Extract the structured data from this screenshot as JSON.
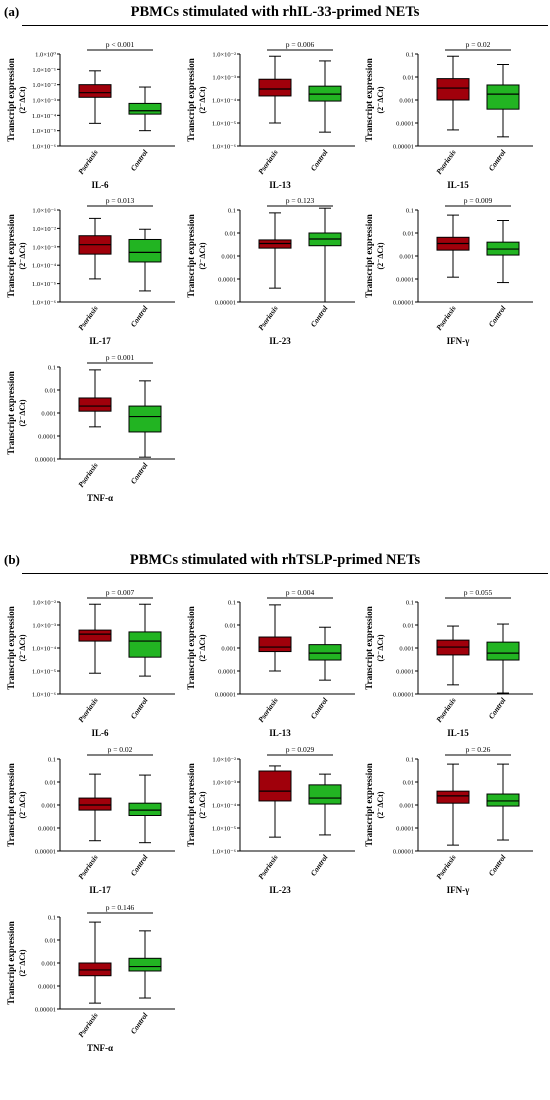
{
  "figure": {
    "panel_a": {
      "label": "(a)",
      "title": "PBMCs  stimulated with rhIL-33-primed NETs"
    },
    "panel_b": {
      "label": "(b)",
      "title": "PBMCs  stimulated with rhTSLP-primed NETs"
    },
    "ylabel_main": "Transcript expression",
    "ylabel_unit": "(2⁻ΔCt)",
    "colors": {
      "psoriasis": "#a0000b",
      "control": "#22b422"
    }
  },
  "chart_data": [
    {
      "type": "box",
      "title": "IL-6",
      "panel": "a",
      "pvalue": "p < 0.001",
      "scale": "log",
      "ylim_exp": [
        -6,
        0
      ],
      "tick_labels": [
        "1.0×10⁻⁶",
        "1.0×10⁻⁵",
        "1.0×10⁻⁴",
        "1.0×10⁻³",
        "1.0×10⁻²",
        "1.0×10⁻¹",
        "1.0×10⁰"
      ],
      "categories": [
        "Psoriasis",
        "Control"
      ],
      "series": [
        {
          "name": "Psoriasis",
          "min": 3e-05,
          "q1": 0.0015,
          "median": 0.003,
          "q3": 0.01,
          "max": 0.08
        },
        {
          "name": "Control",
          "min": 1e-05,
          "q1": 0.00012,
          "median": 0.0002,
          "q3": 0.0006,
          "max": 0.007
        }
      ]
    },
    {
      "type": "box",
      "title": "IL-13",
      "panel": "a",
      "pvalue": "p = 0.006",
      "scale": "log",
      "ylim_exp": [
        -6,
        -2
      ],
      "tick_labels": [
        "1.0×10⁻⁶",
        "1.0×10⁻⁵",
        "1.0×10⁻⁴",
        "1.0×10⁻³",
        "1.0×10⁻²"
      ],
      "categories": [
        "Psoriasis",
        "Control"
      ],
      "series": [
        {
          "name": "Psoriasis",
          "min": 1e-05,
          "q1": 0.00015,
          "median": 0.0003,
          "q3": 0.0008,
          "max": 0.008
        },
        {
          "name": "Control",
          "min": 4e-06,
          "q1": 9e-05,
          "median": 0.00018,
          "q3": 0.0004,
          "max": 0.005
        }
      ]
    },
    {
      "type": "box",
      "title": "IL-15",
      "panel": "a",
      "pvalue": "p = 0.02",
      "scale": "log",
      "ylim_exp": [
        -5,
        -1
      ],
      "tick_labels": [
        "0.00001",
        "0.0001",
        "0.001",
        "0.01",
        "0.1"
      ],
      "categories": [
        "Psoriasis",
        "Control"
      ],
      "series": [
        {
          "name": "Psoriasis",
          "min": 5e-05,
          "q1": 0.001,
          "median": 0.0033,
          "q3": 0.0085,
          "max": 0.08
        },
        {
          "name": "Control",
          "min": 2.5e-05,
          "q1": 0.0004,
          "median": 0.0018,
          "q3": 0.0045,
          "max": 0.035
        }
      ]
    },
    {
      "type": "box",
      "title": "IL-17",
      "panel": "a",
      "pvalue": "p = 0.013",
      "scale": "log",
      "ylim_exp": [
        -6,
        -1
      ],
      "tick_labels": [
        "1.0×10⁻⁶",
        "1.0×10⁻⁵",
        "1.0×10⁻⁴",
        "1.0×10⁻³",
        "1.0×10⁻²",
        "1.0×10⁻¹"
      ],
      "categories": [
        "Psoriasis",
        "Control"
      ],
      "series": [
        {
          "name": "Psoriasis",
          "min": 1.8e-05,
          "q1": 0.0004,
          "median": 0.0013,
          "q3": 0.004,
          "max": 0.035
        },
        {
          "name": "Control",
          "min": 4e-06,
          "q1": 0.00015,
          "median": 0.0005,
          "q3": 0.0025,
          "max": 0.009
        }
      ]
    },
    {
      "type": "box",
      "title": "IL-23",
      "panel": "a",
      "pvalue": "p = 0.123",
      "scale": "log",
      "ylim_exp": [
        -5,
        -1
      ],
      "tick_labels": [
        "0.00001",
        "0.0001",
        "0.001",
        "0.01",
        "0.1"
      ],
      "categories": [
        "Psoriasis",
        "Control"
      ],
      "series": [
        {
          "name": "Psoriasis",
          "min": 4e-05,
          "q1": 0.0022,
          "median": 0.0035,
          "q3": 0.005,
          "max": 0.075
        },
        {
          "name": "Control",
          "min": 1e-05,
          "q1": 0.0028,
          "median": 0.0055,
          "q3": 0.01,
          "max": 0.12
        }
      ]
    },
    {
      "type": "box",
      "title": "IFN-γ",
      "panel": "a",
      "pvalue": "p = 0.009",
      "scale": "log",
      "ylim_exp": [
        -5,
        -1
      ],
      "tick_labels": [
        "0.00001",
        "0.0001",
        "0.001",
        "0.01",
        "0.1"
      ],
      "categories": [
        "Psoriasis",
        "Control"
      ],
      "series": [
        {
          "name": "Psoriasis",
          "min": 0.00012,
          "q1": 0.0018,
          "median": 0.0035,
          "q3": 0.0065,
          "max": 0.06
        },
        {
          "name": "Control",
          "min": 7e-05,
          "q1": 0.0011,
          "median": 0.002,
          "q3": 0.004,
          "max": 0.035
        }
      ]
    },
    {
      "type": "box",
      "title": "TNF-α",
      "panel": "a",
      "pvalue": "p = 0.001",
      "scale": "log",
      "ylim_exp": [
        -5,
        -1
      ],
      "tick_labels": [
        "0.00001",
        "0.0001",
        "0.001",
        "0.01",
        "0.1"
      ],
      "categories": [
        "Psoriasis",
        "Control"
      ],
      "series": [
        {
          "name": "Psoriasis",
          "min": 0.00025,
          "q1": 0.0012,
          "median": 0.002,
          "q3": 0.0045,
          "max": 0.075
        },
        {
          "name": "Control",
          "min": 1.2e-05,
          "q1": 0.00015,
          "median": 0.0007,
          "q3": 0.002,
          "max": 0.025
        }
      ]
    },
    {
      "type": "box",
      "title": "IL-6",
      "panel": "b",
      "pvalue": "p = 0.007",
      "scale": "log",
      "ylim_exp": [
        -6,
        -2
      ],
      "tick_labels": [
        "1.0×10⁻⁶",
        "1.0×10⁻⁵",
        "1.0×10⁻⁴",
        "1.0×10⁻³",
        "1.0×10⁻²"
      ],
      "categories": [
        "Psoriasis",
        "Control"
      ],
      "series": [
        {
          "name": "Psoriasis",
          "min": 8e-06,
          "q1": 0.0002,
          "median": 0.0004,
          "q3": 0.0006,
          "max": 0.008
        },
        {
          "name": "Control",
          "min": 6e-06,
          "q1": 4e-05,
          "median": 0.0002,
          "q3": 0.0005,
          "max": 0.008
        }
      ]
    },
    {
      "type": "box",
      "title": "IL-13",
      "panel": "b",
      "pvalue": "p = 0.004",
      "scale": "log",
      "ylim_exp": [
        -5,
        -1
      ],
      "tick_labels": [
        "0.00001",
        "0.0001",
        "0.001",
        "0.01",
        "0.1"
      ],
      "categories": [
        "Psoriasis",
        "Control"
      ],
      "series": [
        {
          "name": "Psoriasis",
          "min": 0.0001,
          "q1": 0.0007,
          "median": 0.0011,
          "q3": 0.003,
          "max": 0.075
        },
        {
          "name": "Control",
          "min": 4e-05,
          "q1": 0.0003,
          "median": 0.0006,
          "q3": 0.0014,
          "max": 0.008
        }
      ]
    },
    {
      "type": "box",
      "title": "IL-15",
      "panel": "b",
      "pvalue": "p = 0.055",
      "scale": "log",
      "ylim_exp": [
        -5,
        -1
      ],
      "tick_labels": [
        "0.00001",
        "0.0001",
        "0.001",
        "0.01",
        "0.1"
      ],
      "categories": [
        "Psoriasis",
        "Control"
      ],
      "series": [
        {
          "name": "Psoriasis",
          "min": 2.5e-05,
          "q1": 0.0005,
          "median": 0.0011,
          "q3": 0.0022,
          "max": 0.009
        },
        {
          "name": "Control",
          "min": 1.1e-05,
          "q1": 0.0003,
          "median": 0.0006,
          "q3": 0.0018,
          "max": 0.011
        }
      ]
    },
    {
      "type": "box",
      "title": "IL-17",
      "panel": "b",
      "pvalue": "p = 0.02",
      "scale": "log",
      "ylim_exp": [
        -5,
        -1
      ],
      "tick_labels": [
        "0.00001",
        "0.0001",
        "0.001",
        "0.01",
        "0.1"
      ],
      "categories": [
        "Psoriasis",
        "Control"
      ],
      "series": [
        {
          "name": "Psoriasis",
          "min": 2.8e-05,
          "q1": 0.0006,
          "median": 0.001,
          "q3": 0.002,
          "max": 0.022
        },
        {
          "name": "Control",
          "min": 2.3e-05,
          "q1": 0.00035,
          "median": 0.0006,
          "q3": 0.0012,
          "max": 0.02
        }
      ]
    },
    {
      "type": "box",
      "title": "IL-23",
      "panel": "b",
      "pvalue": "p = 0.029",
      "scale": "log",
      "ylim_exp": [
        -6,
        -2
      ],
      "tick_labels": [
        "1.0×10⁻⁶",
        "1.0×10⁻⁵",
        "1.0×10⁻⁴",
        "1.0×10⁻³",
        "1.0×10⁻²"
      ],
      "categories": [
        "Psoriasis",
        "Control"
      ],
      "series": [
        {
          "name": "Psoriasis",
          "min": 4e-06,
          "q1": 0.00015,
          "median": 0.0004,
          "q3": 0.003,
          "max": 0.005
        },
        {
          "name": "Control",
          "min": 5e-06,
          "q1": 0.00011,
          "median": 0.0002,
          "q3": 0.00075,
          "max": 0.0022
        }
      ]
    },
    {
      "type": "box",
      "title": "IFN-γ",
      "panel": "b",
      "pvalue": "p = 0.26",
      "scale": "log",
      "ylim_exp": [
        -5,
        -1
      ],
      "tick_labels": [
        "0.00001",
        "0.0001",
        "0.001",
        "0.01",
        "0.1"
      ],
      "categories": [
        "Psoriasis",
        "Control"
      ],
      "series": [
        {
          "name": "Psoriasis",
          "min": 1.8e-05,
          "q1": 0.0012,
          "median": 0.0025,
          "q3": 0.004,
          "max": 0.06
        },
        {
          "name": "Control",
          "min": 3e-05,
          "q1": 0.0009,
          "median": 0.0015,
          "q3": 0.003,
          "max": 0.06
        }
      ]
    },
    {
      "type": "box",
      "title": "TNF-α",
      "panel": "b",
      "pvalue": "p = 0.146",
      "scale": "log",
      "ylim_exp": [
        -5,
        -1
      ],
      "tick_labels": [
        "0.00001",
        "0.0001",
        "0.001",
        "0.01",
        "0.1"
      ],
      "categories": [
        "Psoriasis",
        "Control"
      ],
      "series": [
        {
          "name": "Psoriasis",
          "min": 1.8e-05,
          "q1": 0.00028,
          "median": 0.0005,
          "q3": 0.001,
          "max": 0.06
        },
        {
          "name": "Control",
          "min": 3e-05,
          "q1": 0.00045,
          "median": 0.0007,
          "q3": 0.0016,
          "max": 0.025
        }
      ]
    }
  ]
}
